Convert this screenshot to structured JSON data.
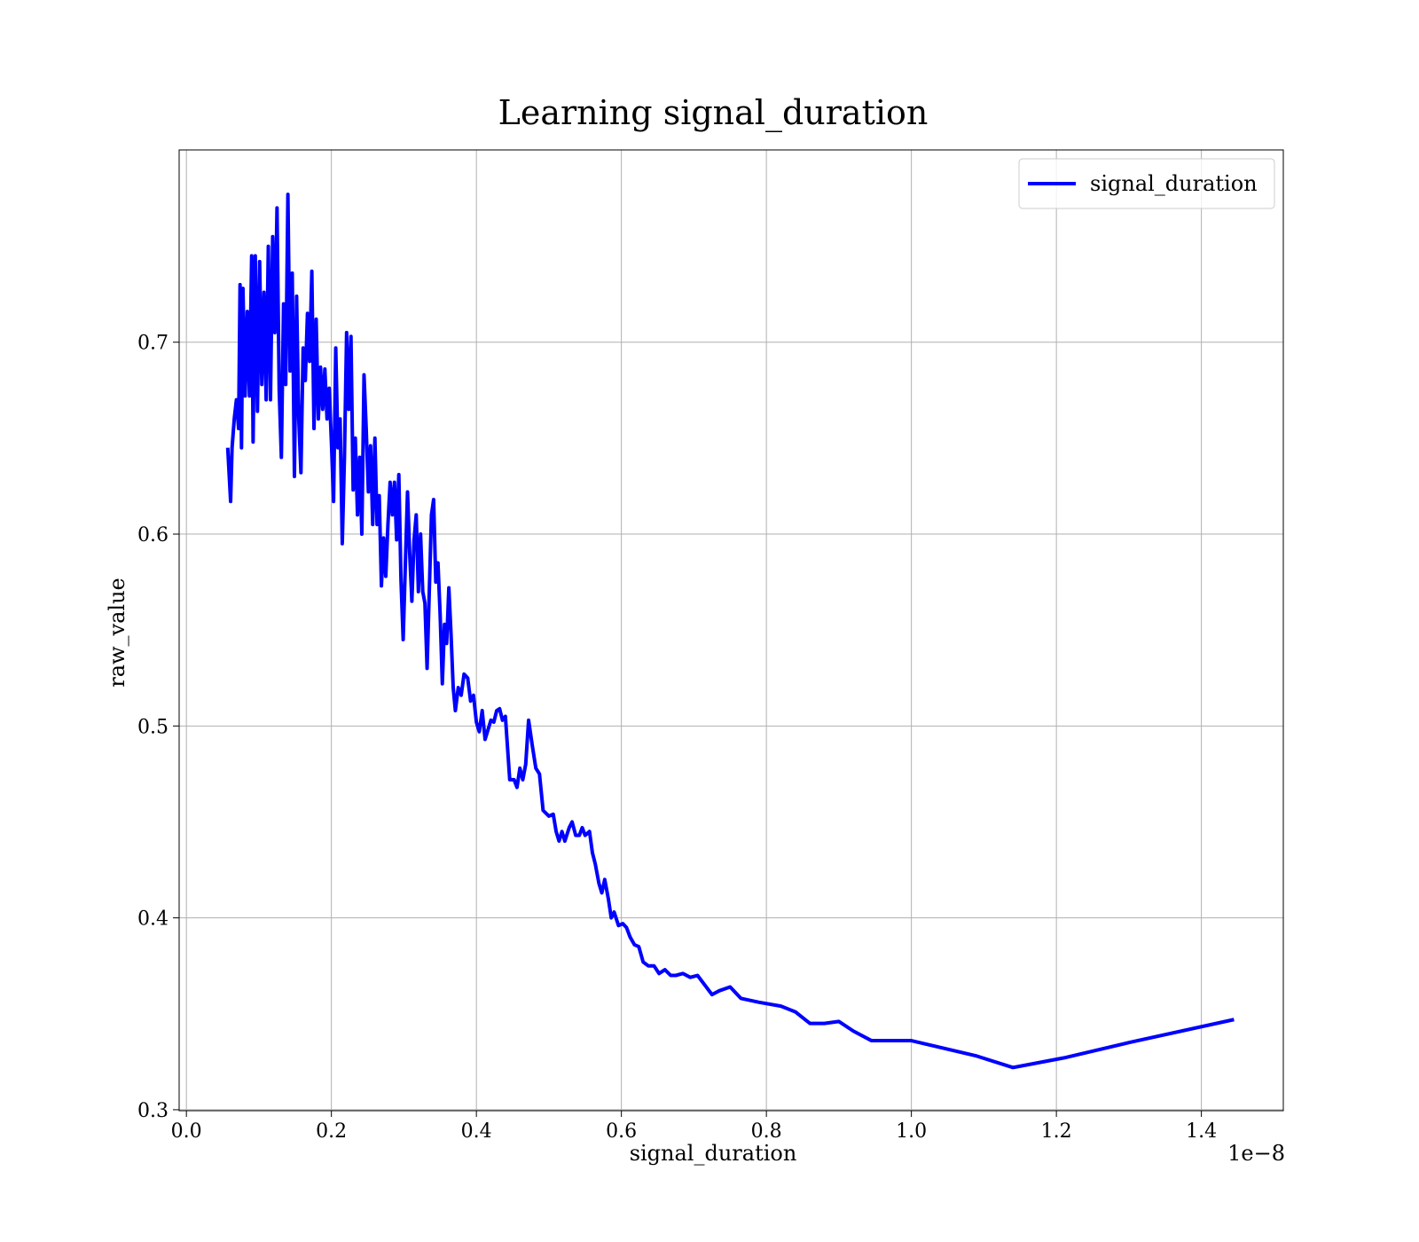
{
  "chart_data": {
    "type": "line",
    "title": "Learning signal_duration",
    "x_label": "signal_duration",
    "y_label": "raw_value",
    "x_offset_label": "1e−8",
    "x": [
      0.057,
      0.061,
      0.063,
      0.066,
      0.069,
      0.072,
      0.074,
      0.076,
      0.078,
      0.081,
      0.084,
      0.087,
      0.09,
      0.092,
      0.095,
      0.098,
      0.101,
      0.104,
      0.107,
      0.11,
      0.113,
      0.116,
      0.119,
      0.122,
      0.125,
      0.128,
      0.131,
      0.134,
      0.137,
      0.14,
      0.143,
      0.146,
      0.149,
      0.152,
      0.155,
      0.158,
      0.161,
      0.164,
      0.167,
      0.17,
      0.173,
      0.176,
      0.179,
      0.182,
      0.185,
      0.188,
      0.191,
      0.194,
      0.197,
      0.2,
      0.203,
      0.206,
      0.209,
      0.212,
      0.215,
      0.218,
      0.221,
      0.224,
      0.227,
      0.23,
      0.233,
      0.236,
      0.239,
      0.242,
      0.245,
      0.248,
      0.251,
      0.254,
      0.257,
      0.26,
      0.263,
      0.266,
      0.269,
      0.272,
      0.275,
      0.278,
      0.281,
      0.284,
      0.287,
      0.29,
      0.293,
      0.296,
      0.299,
      0.302,
      0.305,
      0.308,
      0.311,
      0.314,
      0.317,
      0.32,
      0.323,
      0.326,
      0.329,
      0.332,
      0.335,
      0.338,
      0.341,
      0.344,
      0.347,
      0.35,
      0.353,
      0.356,
      0.359,
      0.362,
      0.365,
      0.368,
      0.371,
      0.375,
      0.379,
      0.383,
      0.388,
      0.392,
      0.396,
      0.4,
      0.404,
      0.408,
      0.412,
      0.416,
      0.42,
      0.424,
      0.428,
      0.432,
      0.436,
      0.44,
      0.446,
      0.452,
      0.456,
      0.46,
      0.464,
      0.468,
      0.472,
      0.477,
      0.482,
      0.487,
      0.492,
      0.5,
      0.506,
      0.51,
      0.514,
      0.518,
      0.522,
      0.528,
      0.532,
      0.537,
      0.542,
      0.546,
      0.55,
      0.556,
      0.56,
      0.564,
      0.569,
      0.573,
      0.577,
      0.582,
      0.586,
      0.59,
      0.596,
      0.602,
      0.607,
      0.612,
      0.618,
      0.624,
      0.63,
      0.637,
      0.645,
      0.652,
      0.66,
      0.668,
      0.675,
      0.685,
      0.695,
      0.705,
      0.715,
      0.725,
      0.735,
      0.75,
      0.765,
      0.79,
      0.82,
      0.84,
      0.86,
      0.88,
      0.9,
      0.92,
      0.945,
      1.0,
      1.09,
      1.14,
      1.21,
      1.3,
      1.445
    ],
    "series": [
      {
        "name": "signal_duration",
        "color": "#0000ff",
        "values": [
          0.645,
          0.617,
          0.645,
          0.66,
          0.67,
          0.655,
          0.73,
          0.645,
          0.728,
          0.672,
          0.716,
          0.672,
          0.745,
          0.648,
          0.745,
          0.664,
          0.742,
          0.678,
          0.726,
          0.67,
          0.75,
          0.67,
          0.755,
          0.705,
          0.77,
          0.675,
          0.64,
          0.72,
          0.678,
          0.777,
          0.685,
          0.736,
          0.63,
          0.724,
          0.66,
          0.632,
          0.697,
          0.68,
          0.715,
          0.69,
          0.737,
          0.655,
          0.712,
          0.66,
          0.687,
          0.665,
          0.686,
          0.66,
          0.676,
          0.648,
          0.617,
          0.697,
          0.645,
          0.66,
          0.595,
          0.64,
          0.705,
          0.665,
          0.703,
          0.623,
          0.65,
          0.61,
          0.64,
          0.6,
          0.683,
          0.655,
          0.622,
          0.646,
          0.605,
          0.65,
          0.605,
          0.62,
          0.573,
          0.598,
          0.578,
          0.605,
          0.627,
          0.61,
          0.627,
          0.597,
          0.631,
          0.576,
          0.545,
          0.584,
          0.622,
          0.59,
          0.565,
          0.597,
          0.61,
          0.57,
          0.6,
          0.57,
          0.564,
          0.53,
          0.57,
          0.61,
          0.618,
          0.575,
          0.585,
          0.558,
          0.522,
          0.553,
          0.543,
          0.572,
          0.548,
          0.52,
          0.508,
          0.52,
          0.516,
          0.527,
          0.525,
          0.513,
          0.516,
          0.502,
          0.497,
          0.508,
          0.493,
          0.498,
          0.503,
          0.502,
          0.508,
          0.509,
          0.503,
          0.505,
          0.472,
          0.472,
          0.468,
          0.478,
          0.472,
          0.48,
          0.503,
          0.49,
          0.478,
          0.475,
          0.456,
          0.453,
          0.454,
          0.445,
          0.44,
          0.445,
          0.44,
          0.447,
          0.45,
          0.443,
          0.443,
          0.447,
          0.443,
          0.445,
          0.434,
          0.428,
          0.418,
          0.413,
          0.42,
          0.41,
          0.4,
          0.403,
          0.396,
          0.397,
          0.395,
          0.39,
          0.386,
          0.385,
          0.377,
          0.375,
          0.375,
          0.371,
          0.373,
          0.37,
          0.37,
          0.371,
          0.369,
          0.37,
          0.365,
          0.36,
          0.362,
          0.364,
          0.358,
          0.356,
          0.354,
          0.351,
          0.345,
          0.345,
          0.346,
          0.341,
          0.336,
          0.336,
          0.328,
          0.322,
          0.327,
          0.335,
          0.347
        ]
      }
    ],
    "xlim": [
      -0.01,
      1.513
    ],
    "ylim": [
      0.2995,
      0.8002
    ],
    "xticks": [
      {
        "value": 0,
        "label": "0.0"
      },
      0.2,
      0.4,
      0.6,
      0.8,
      {
        "value": 1,
        "label": "1.0"
      },
      1.2,
      1.4
    ],
    "yticks": [
      0.3,
      0.4,
      0.5,
      0.6,
      0.7
    ],
    "grid": true,
    "legend": "upper right"
  }
}
